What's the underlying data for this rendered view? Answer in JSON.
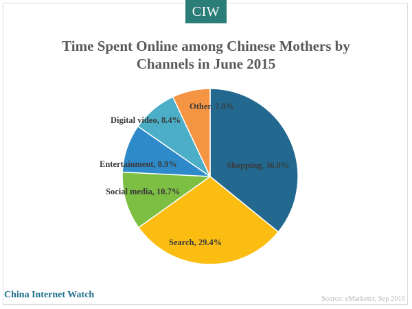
{
  "logo": {
    "text": "CIW"
  },
  "colors": {
    "logo_bg": "#2b7d77",
    "title": "#595959",
    "brand": "#1f6f8b",
    "source": "#b8b8b8"
  },
  "chart_data": {
    "type": "pie",
    "title_line1": "Time Spent Online among Chinese Mothers by",
    "title_line2": "Channels in June 2015",
    "unit": "%",
    "start_angle_deg": 0,
    "direction": "clockwise",
    "slices": [
      {
        "label": "Shopping",
        "value": 36.0,
        "display": "Shopping, 36.0%",
        "color": "#22688f"
      },
      {
        "label": "Search",
        "value": 29.4,
        "display": "Search, 29.4%",
        "color": "#fbbd12"
      },
      {
        "label": "Social media",
        "value": 10.7,
        "display": "Social media, 10.7%",
        "color": "#7cbf43"
      },
      {
        "label": "Entertainment",
        "value": 8.9,
        "display": "Entertainment, 8.9%",
        "color": "#2e8ac9"
      },
      {
        "label": "Digital video",
        "value": 8.4,
        "display": "Digital video, 8.4%",
        "color": "#4caec7"
      },
      {
        "label": "Other",
        "value": 7.0,
        "display": "Other, 7.0%",
        "color": "#f59443"
      }
    ]
  },
  "footer": {
    "brand": "China Internet Watch",
    "source": "Source: eMarketer, Sep 2015"
  }
}
